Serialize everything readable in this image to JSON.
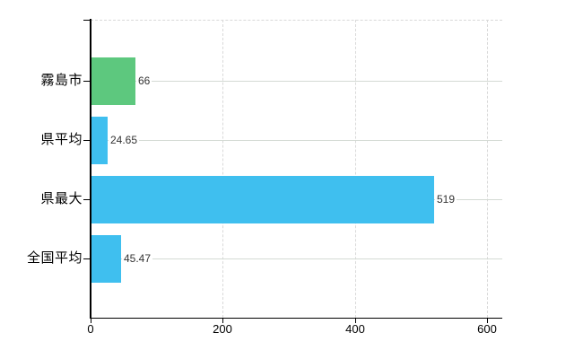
{
  "chart_data": {
    "type": "bar",
    "orientation": "horizontal",
    "title": "",
    "xlabel": "",
    "ylabel": "",
    "categories": [
      "霧島市",
      "県平均",
      "県最大",
      "全国平均"
    ],
    "values": [
      66,
      24.65,
      519,
      45.47
    ],
    "value_labels": [
      "66",
      "24.65",
      "519",
      "45.47"
    ],
    "bar_colors": [
      "#5dc87e",
      "#3fbfef",
      "#3fbfef",
      "#3fbfef"
    ],
    "x_ticks": [
      0,
      200,
      400,
      600
    ],
    "x_tick_labels": [
      "0",
      "200",
      "400",
      "600"
    ],
    "xlim": [
      0,
      623
    ],
    "grid": true,
    "legend": null,
    "colors": {
      "highlight_bar": "#5dc87e",
      "default_bar": "#3fbfef",
      "axis": "#000000",
      "h_gridline": "#d4dad4",
      "v_gridline": "#d9d9d9",
      "label_text": "#000000",
      "value_text": "#333333",
      "background": "#ffffff"
    }
  }
}
